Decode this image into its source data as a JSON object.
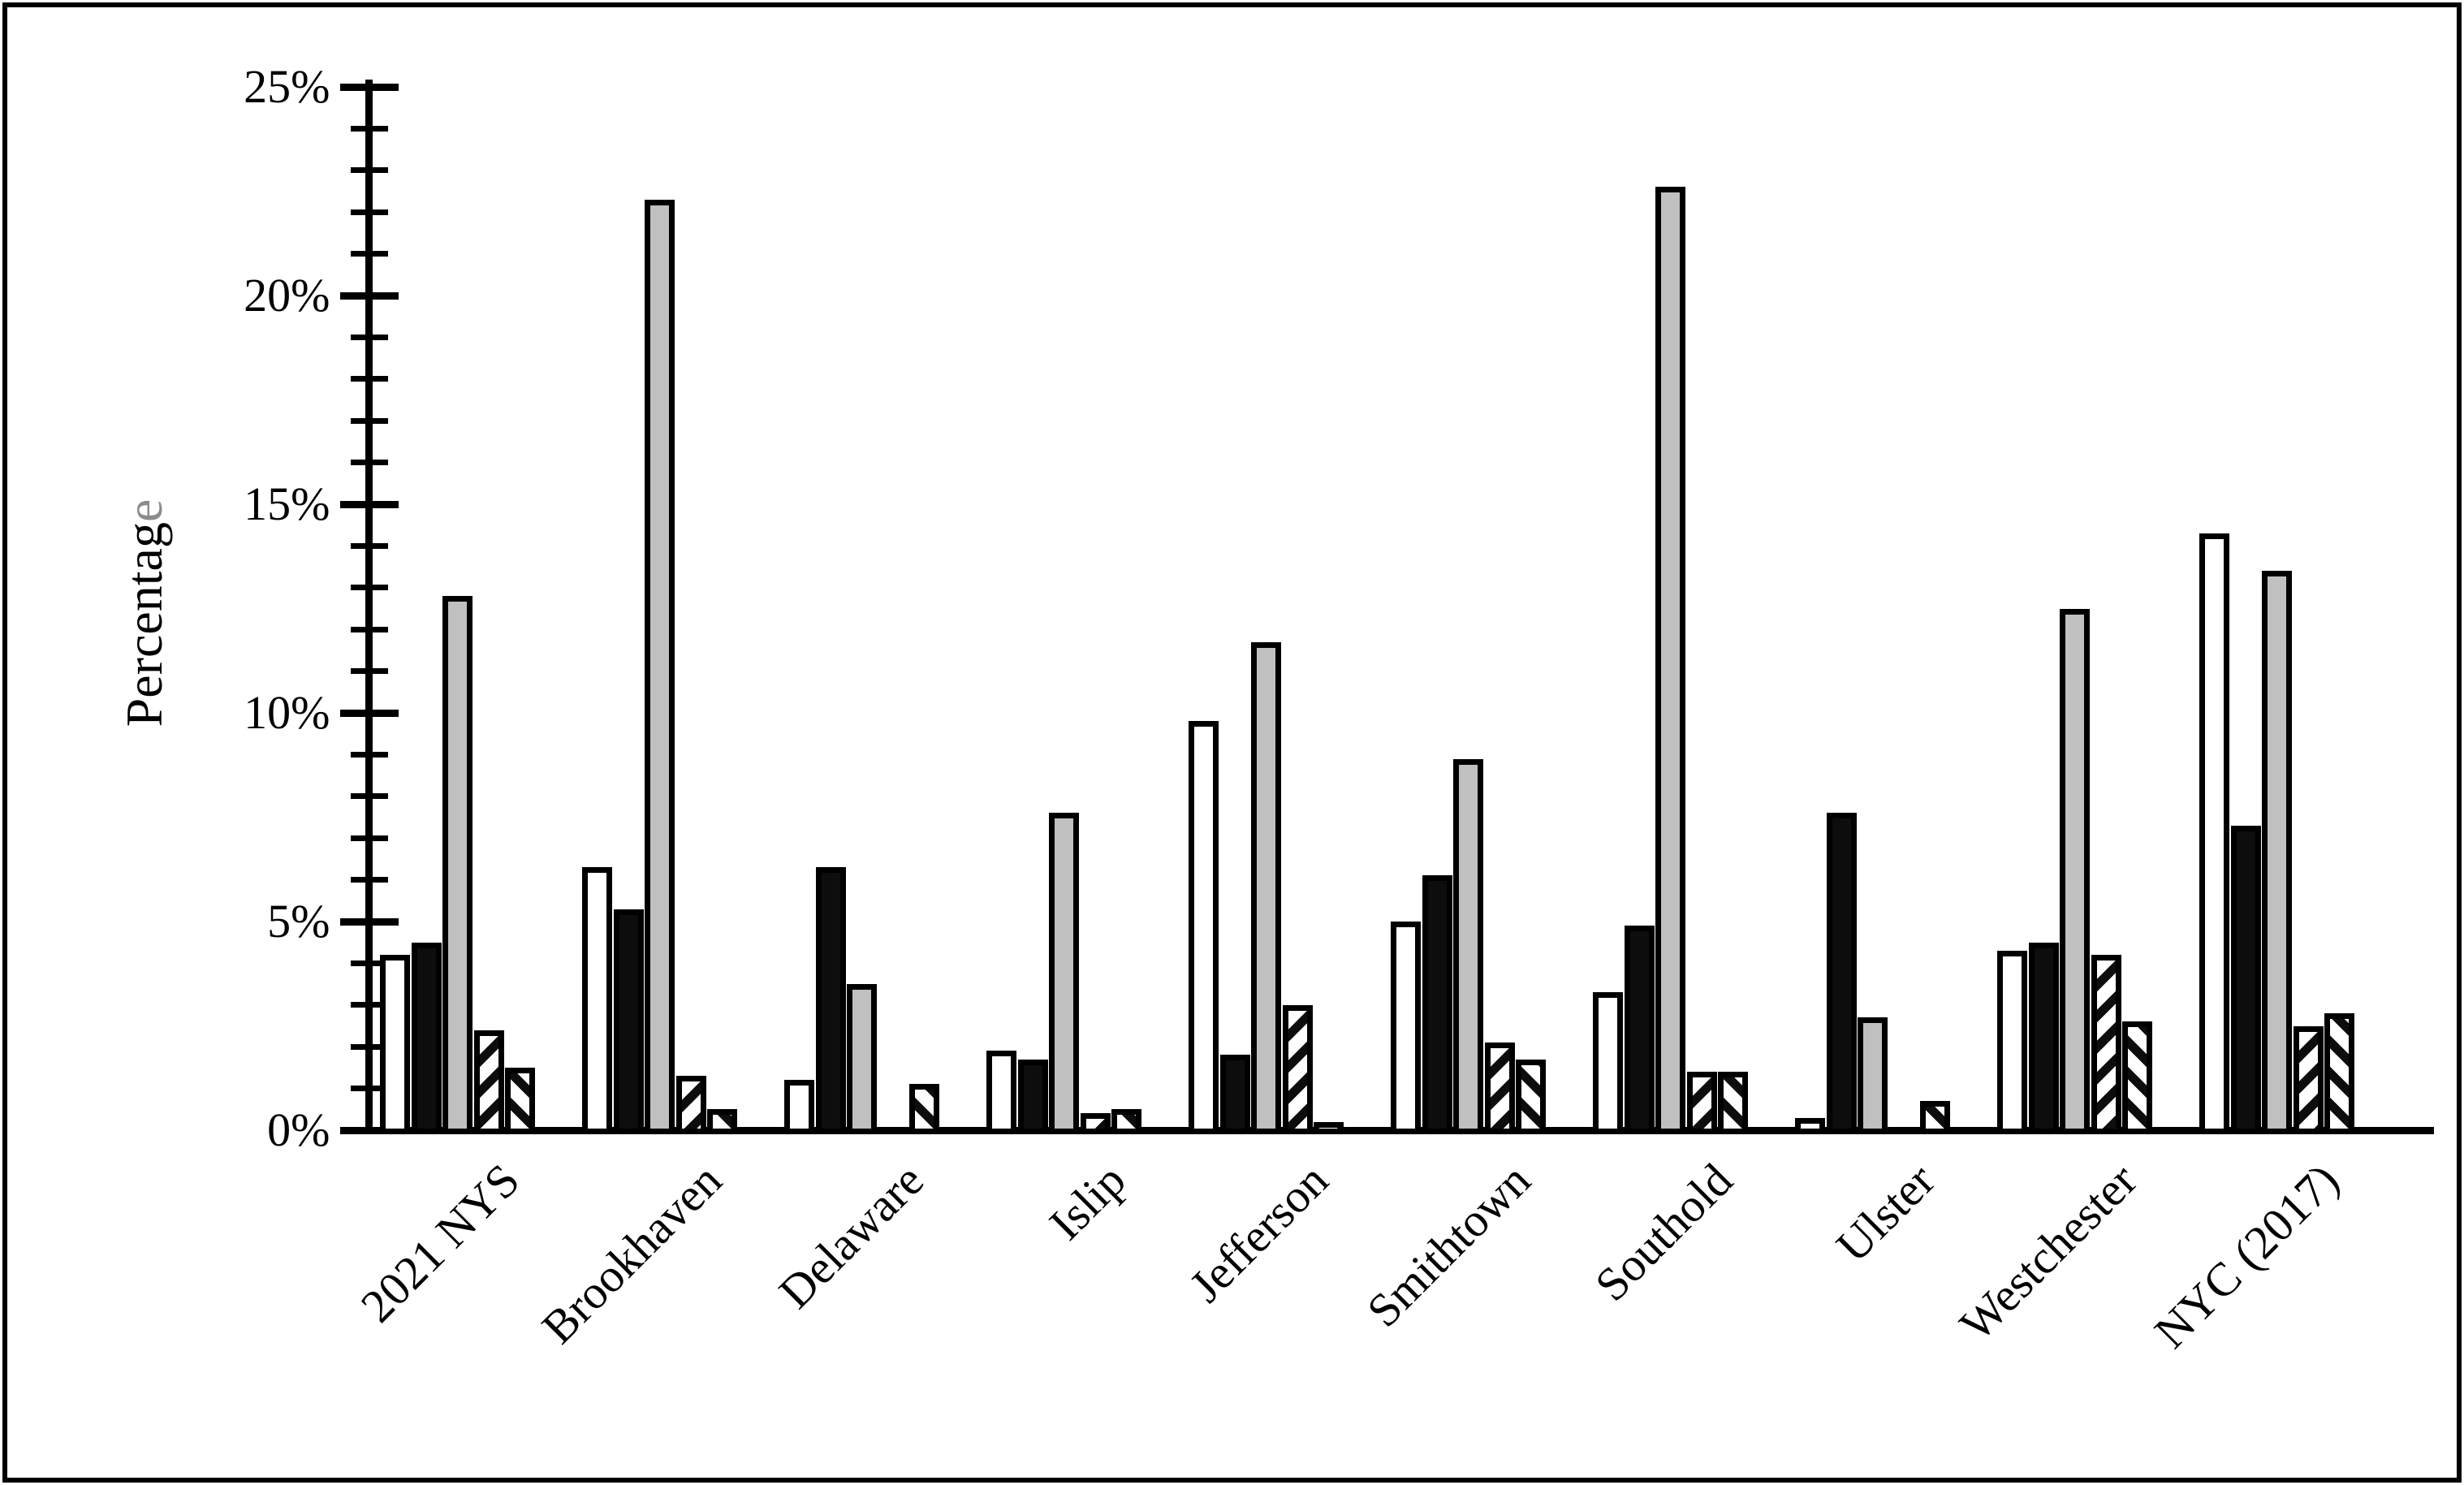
{
  "figure": {
    "background": "#ffffff",
    "frame_color": "#000000"
  },
  "y_axis": {
    "title_main": "Percentag",
    "title_accent": "e",
    "title_accent_color": "#8c8c8c",
    "min": 0,
    "max": 25,
    "major_unit": 5,
    "minor_unit": 1,
    "tick_labels": [
      "0%",
      "5%",
      "10%",
      "15%",
      "20%",
      "25%"
    ]
  },
  "chart_data": {
    "type": "bar",
    "title": "",
    "xlabel": "",
    "ylabel": "Percentage",
    "ylim": [
      0,
      25
    ],
    "grid": false,
    "legend": null,
    "categories": [
      "2021 NYS",
      "Brookhaven",
      "Delaware",
      "Islip",
      "Jefferson",
      "Smithtown",
      "Southold",
      "Ulster",
      "Westchester",
      "NYC (2017)"
    ],
    "series": [
      {
        "name": "series-1-white",
        "pattern": "solid",
        "fill": "#ffffff",
        "values": [
          4.2,
          6.3,
          1.2,
          1.9,
          9.8,
          5.0,
          3.3,
          0.3,
          4.3,
          14.3
        ]
      },
      {
        "name": "series-2-black",
        "pattern": "solid",
        "fill": "#0d0d0d",
        "values": [
          4.5,
          5.3,
          6.3,
          1.7,
          1.8,
          6.1,
          4.9,
          7.6,
          4.5,
          7.3
        ]
      },
      {
        "name": "series-3-gray",
        "pattern": "solid",
        "fill": "#c0c0c0",
        "values": [
          12.8,
          22.3,
          3.5,
          7.6,
          11.7,
          8.9,
          22.6,
          2.7,
          12.5,
          13.4
        ]
      },
      {
        "name": "series-4-diagonal-up",
        "pattern": "diagonal-up",
        "fill": "hatch",
        "values": [
          2.4,
          1.3,
          0,
          0.4,
          3.0,
          2.1,
          1.4,
          0,
          4.2,
          2.5
        ]
      },
      {
        "name": "series-5-diagonal-down",
        "pattern": "diagonal-down",
        "fill": "hatch",
        "values": [
          1.5,
          0.5,
          1.1,
          0.5,
          0.2,
          1.7,
          1.4,
          0.7,
          2.6,
          2.8
        ]
      }
    ]
  }
}
